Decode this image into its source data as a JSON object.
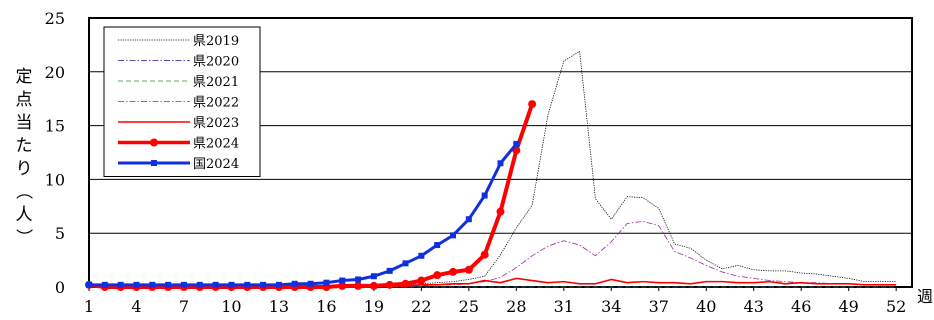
{
  "chart_data": {
    "type": "line",
    "xlabel": "週",
    "ylabel": "定点当たり（人）",
    "xlim": [
      1,
      53
    ],
    "ylim": [
      0,
      25
    ],
    "x_ticks": [
      1,
      4,
      7,
      10,
      13,
      16,
      19,
      22,
      25,
      28,
      31,
      34,
      37,
      40,
      43,
      46,
      49,
      52
    ],
    "y_ticks": [
      0,
      5,
      10,
      15,
      20,
      25
    ],
    "grid": "horizontal",
    "legend_position": "top-left",
    "series": [
      {
        "name": "県2019",
        "color": "#000000",
        "style": "dotted",
        "width": 0.8,
        "marker": "none",
        "x": [
          1,
          2,
          3,
          4,
          5,
          6,
          7,
          8,
          9,
          10,
          11,
          12,
          13,
          14,
          15,
          16,
          17,
          18,
          19,
          20,
          21,
          22,
          23,
          24,
          25,
          26,
          27,
          28,
          29,
          30,
          31,
          32,
          33,
          34,
          35,
          36,
          37,
          38,
          39,
          40,
          41,
          42,
          43,
          44,
          45,
          46,
          47,
          48,
          49,
          50,
          51,
          52
        ],
        "values": [
          0.1,
          0.1,
          0.1,
          0.1,
          0.1,
          0.1,
          0.1,
          0.1,
          0.1,
          0.1,
          0.1,
          0.1,
          0.1,
          0.1,
          0.1,
          0.1,
          0.1,
          0.1,
          0.1,
          0.2,
          0.2,
          0.3,
          0.4,
          0.5,
          0.7,
          1.0,
          3.0,
          5.5,
          7.6,
          16.0,
          21.0,
          21.9,
          8.2,
          6.3,
          8.4,
          8.3,
          7.3,
          4.0,
          3.6,
          2.5,
          1.7,
          2.0,
          1.6,
          1.5,
          1.5,
          1.3,
          1.2,
          1.0,
          0.8,
          0.5,
          0.5,
          0.5
        ]
      },
      {
        "name": "県2020",
        "color": "#1a1a8c",
        "style": "dashdot",
        "width": 0.8,
        "marker": "none",
        "x": [
          1,
          2,
          3,
          4,
          5,
          6,
          7,
          8,
          9,
          10,
          11,
          12,
          13,
          14,
          15,
          16,
          17,
          18,
          19,
          20,
          21,
          22,
          23,
          24,
          25,
          26,
          27,
          28,
          29,
          30,
          31,
          32,
          33,
          34,
          35,
          36,
          37,
          38,
          39,
          40,
          41,
          42,
          43,
          44,
          45,
          46,
          47,
          48,
          49,
          50,
          51,
          52
        ],
        "values": [
          0.1,
          0.1,
          0.1,
          0.1,
          0.1,
          0.1,
          0.1,
          0.1,
          0.1,
          0.1,
          0.1,
          0.1,
          0.0,
          0.0,
          0.0,
          0.0,
          0.0,
          0.0,
          0.0,
          0.0,
          0.0,
          0.0,
          0.0,
          0.0,
          0.0,
          0.0,
          0.0,
          0.0,
          0.0,
          0.0,
          0.0,
          0.0,
          0.0,
          0.0,
          0.0,
          0.0,
          0.0,
          0.0,
          0.0,
          0.0,
          0.0,
          0.0,
          0.0,
          0.0,
          0.0,
          0.0,
          0.0,
          0.0,
          0.0,
          0.0,
          0.0,
          0.0
        ]
      },
      {
        "name": "県2021",
        "color": "#2e8b2e",
        "style": "dashed",
        "width": 0.8,
        "marker": "none",
        "x": [
          1,
          2,
          3,
          4,
          5,
          6,
          7,
          8,
          9,
          10,
          11,
          12,
          13,
          14,
          15,
          16,
          17,
          18,
          19,
          20,
          21,
          22,
          23,
          24,
          25,
          26,
          27,
          28,
          29,
          30,
          31,
          32,
          33,
          34,
          35,
          36,
          37,
          38,
          39,
          40,
          41,
          42,
          43,
          44,
          45,
          46,
          47,
          48,
          49,
          50,
          51,
          52
        ],
        "values": [
          0.0,
          0.0,
          0.0,
          0.0,
          0.0,
          0.0,
          0.0,
          0.0,
          0.0,
          0.0,
          0.0,
          0.0,
          0.0,
          0.0,
          0.0,
          0.0,
          0.0,
          0.0,
          0.0,
          0.0,
          0.0,
          0.0,
          0.0,
          0.0,
          0.0,
          0.0,
          0.0,
          0.0,
          0.0,
          0.0,
          0.0,
          0.0,
          0.0,
          0.0,
          0.0,
          0.0,
          0.0,
          0.0,
          0.0,
          0.0,
          0.0,
          0.0,
          0.0,
          0.0,
          0.0,
          0.0,
          0.0,
          0.0,
          0.0,
          0.0,
          0.0,
          0.0
        ]
      },
      {
        "name": "県2022",
        "color": "#9b2a9b",
        "style": "dashdot",
        "width": 0.8,
        "marker": "none",
        "x": [
          1,
          2,
          3,
          4,
          5,
          6,
          7,
          8,
          9,
          10,
          11,
          12,
          13,
          14,
          15,
          16,
          17,
          18,
          19,
          20,
          21,
          22,
          23,
          24,
          25,
          26,
          27,
          28,
          29,
          30,
          31,
          32,
          33,
          34,
          35,
          36,
          37,
          38,
          39,
          40,
          41,
          42,
          43,
          44,
          45,
          46,
          47,
          48,
          49,
          50,
          51,
          52
        ],
        "values": [
          0.0,
          0.0,
          0.0,
          0.0,
          0.0,
          0.0,
          0.0,
          0.0,
          0.0,
          0.0,
          0.0,
          0.0,
          0.0,
          0.0,
          0.0,
          0.0,
          0.0,
          0.0,
          0.0,
          0.1,
          0.1,
          0.1,
          0.2,
          0.2,
          0.3,
          0.5,
          0.9,
          1.8,
          2.9,
          3.8,
          4.3,
          3.9,
          2.9,
          4.2,
          5.9,
          6.1,
          5.7,
          3.3,
          2.7,
          2.0,
          1.4,
          1.0,
          0.8,
          0.6,
          0.5,
          0.4,
          0.4,
          0.3,
          0.3,
          0.2,
          0.2,
          0.2
        ]
      },
      {
        "name": "県2023",
        "color": "#ff0000",
        "style": "solid",
        "width": 1.6,
        "marker": "none",
        "x": [
          1,
          2,
          3,
          4,
          5,
          6,
          7,
          8,
          9,
          10,
          11,
          12,
          13,
          14,
          15,
          16,
          17,
          18,
          19,
          20,
          21,
          22,
          23,
          24,
          25,
          26,
          27,
          28,
          29,
          30,
          31,
          32,
          33,
          34,
          35,
          36,
          37,
          38,
          39,
          40,
          41,
          42,
          43,
          44,
          45,
          46,
          47,
          48,
          49,
          50,
          51,
          52
        ],
        "values": [
          0.0,
          0.0,
          0.0,
          0.0,
          0.0,
          0.0,
          0.0,
          0.0,
          0.0,
          0.0,
          0.0,
          0.0,
          0.0,
          0.0,
          0.0,
          0.0,
          0.0,
          0.0,
          0.0,
          0.1,
          0.1,
          0.2,
          0.2,
          0.3,
          0.3,
          0.6,
          0.4,
          0.8,
          0.6,
          0.4,
          0.5,
          0.3,
          0.3,
          0.7,
          0.4,
          0.5,
          0.4,
          0.4,
          0.3,
          0.5,
          0.5,
          0.4,
          0.4,
          0.5,
          0.3,
          0.4,
          0.3,
          0.3,
          0.3,
          0.2,
          0.2,
          0.2
        ]
      },
      {
        "name": "県2024",
        "color": "#ff0000",
        "style": "solid",
        "width": 4,
        "marker": "circle",
        "x": [
          1,
          2,
          3,
          4,
          5,
          6,
          7,
          8,
          9,
          10,
          11,
          12,
          13,
          14,
          15,
          16,
          17,
          18,
          19,
          20,
          21,
          22,
          23,
          24,
          25,
          26,
          27,
          28,
          29
        ],
        "values": [
          0.2,
          0.0,
          0.0,
          0.0,
          0.0,
          0.0,
          0.0,
          0.0,
          0.0,
          0.0,
          0.0,
          0.0,
          0.0,
          0.0,
          0.0,
          0.0,
          0.1,
          0.1,
          0.1,
          0.2,
          0.3,
          0.6,
          1.1,
          1.4,
          1.6,
          3.0,
          7.0,
          12.7,
          17.0
        ]
      },
      {
        "name": "国2024",
        "color": "#1030e0",
        "style": "solid",
        "width": 3,
        "marker": "square",
        "x": [
          1,
          2,
          3,
          4,
          5,
          6,
          7,
          8,
          9,
          10,
          11,
          12,
          13,
          14,
          15,
          16,
          17,
          18,
          19,
          20,
          21,
          22,
          23,
          24,
          25,
          26,
          27,
          28
        ],
        "values": [
          0.2,
          0.2,
          0.2,
          0.2,
          0.2,
          0.2,
          0.2,
          0.2,
          0.2,
          0.2,
          0.2,
          0.2,
          0.2,
          0.3,
          0.3,
          0.4,
          0.6,
          0.7,
          1.0,
          1.5,
          2.2,
          2.9,
          3.9,
          4.8,
          6.3,
          8.5,
          11.5,
          13.3
        ]
      }
    ]
  }
}
